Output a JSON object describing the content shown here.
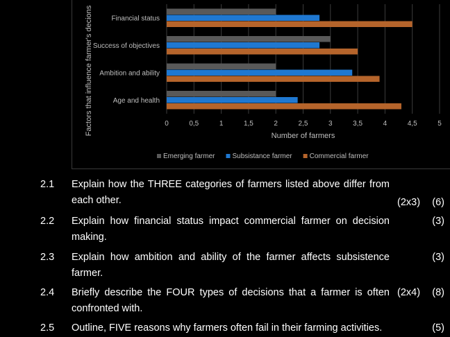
{
  "chart_data": {
    "type": "bar",
    "orientation": "horizontal",
    "categories": [
      "Financial status",
      "Success of objectives",
      "Ambition and ability",
      "Age and health"
    ],
    "series": [
      {
        "name": "Emerging farmer",
        "color": "#595959",
        "values": [
          2,
          3,
          2,
          2
        ]
      },
      {
        "name": "Subsistance farmer",
        "color": "#1f78d1",
        "values": [
          2.8,
          2.8,
          3.4,
          2.4
        ]
      },
      {
        "name": "Commercial farmer",
        "color": "#b5642b",
        "values": [
          4.5,
          3.5,
          3.9,
          4.3
        ]
      }
    ],
    "xlabel": "Number of farmers",
    "ylabel": "Factors that influence farmer's decions",
    "xlim": [
      0,
      5
    ],
    "xticks": [
      "0",
      "0,5",
      "1",
      "1,5",
      "2",
      "2,5",
      "3",
      "3,5",
      "4",
      "4,5",
      "5"
    ],
    "legend_position": "bottom",
    "grid": true
  },
  "questions": [
    {
      "num": "2.1",
      "text": "Explain how the THREE categories of farmers listed above differ from each other.",
      "marks": "(2x3)",
      "total": "(6)"
    },
    {
      "num": "2.2",
      "text": "Explain how  financial status impact commercial farmer on decision making.",
      "marks": "",
      "total": "(3)"
    },
    {
      "num": "2.3",
      "text": "Explain how ambition and ability of the farmer affects subsistence farmer.",
      "marks": "",
      "total": "(3)"
    },
    {
      "num": "2.4",
      "text": "Briefly describe the FOUR types of decisions that a farmer is often confronted with.",
      "marks": "(2x4)",
      "total": "(8)"
    },
    {
      "num": "2.5",
      "text": "Outline, FIVE reasons why farmers often fail in their farming activities.",
      "marks": "",
      "total": "(5)"
    }
  ]
}
